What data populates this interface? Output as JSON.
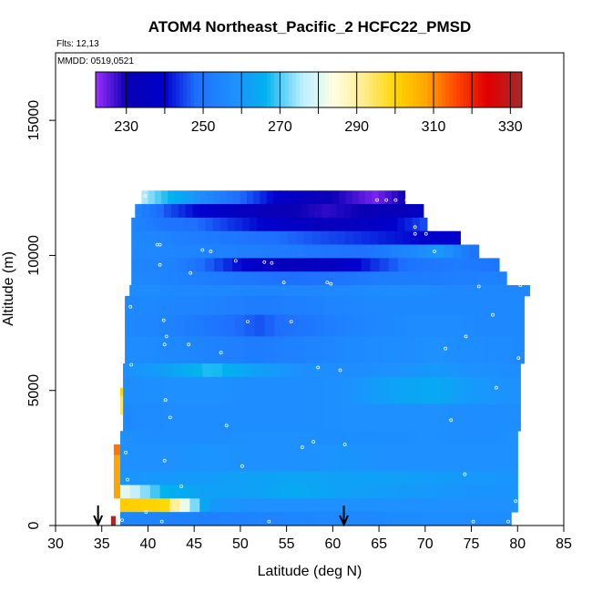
{
  "chart_data": {
    "type": "heatmap",
    "title": "ATOM4 Northeast_Pacific_2 HCFC22_PMSD",
    "flights_label": "Flts: 12,13",
    "mmdd_label": "MMDD: 0519,0521",
    "xlabel": "Latitude (deg N)",
    "ylabel": "Altitude (m)",
    "xlim": [
      30,
      85
    ],
    "ylim": [
      0,
      17500
    ],
    "x_ticks": [
      30,
      35,
      40,
      45,
      50,
      55,
      60,
      65,
      70,
      75,
      80,
      85
    ],
    "y_ticks": [
      0,
      5000,
      10000,
      15000
    ],
    "colorbar": {
      "range": [
        222,
        333
      ],
      "tick_values": [
        230,
        250,
        270,
        290,
        310,
        330
      ],
      "segment_breaks": [
        230,
        240,
        250,
        260,
        270,
        280,
        290,
        300,
        310,
        320,
        330
      ],
      "color_stops": [
        {
          "v": 222,
          "c": "#9b30ff"
        },
        {
          "v": 230,
          "c": "#0a00b4"
        },
        {
          "v": 240,
          "c": "#0000cd"
        },
        {
          "v": 248,
          "c": "#1e6fff"
        },
        {
          "v": 258,
          "c": "#1e90ff"
        },
        {
          "v": 266,
          "c": "#00b2ee"
        },
        {
          "v": 276,
          "c": "#bfefff"
        },
        {
          "v": 284,
          "c": "#ffffe0"
        },
        {
          "v": 292,
          "c": "#ffec8b"
        },
        {
          "v": 300,
          "c": "#ffd700"
        },
        {
          "v": 308,
          "c": "#ffa500"
        },
        {
          "v": 316,
          "c": "#ff4500"
        },
        {
          "v": 324,
          "c": "#e00000"
        },
        {
          "v": 333,
          "c": "#a52a2a"
        }
      ]
    },
    "layers": [
      {
        "alt_min": 11900,
        "alt_max": 12400,
        "lat_min": 39.3,
        "lat_max": 67.8,
        "vals": [
          276,
          266,
          258,
          250,
          244,
          236,
          232,
          228,
          224,
          230
        ]
      },
      {
        "alt_min": 11400,
        "alt_max": 11900,
        "lat_min": 38.6,
        "lat_max": 69.8,
        "vals": [
          255,
          246,
          240,
          236,
          232,
          230,
          228,
          230,
          232,
          236
        ]
      },
      {
        "alt_min": 10900,
        "alt_max": 11400,
        "lat_min": 38.2,
        "lat_max": 70.2,
        "vals": [
          255,
          250,
          248,
          244,
          240,
          236,
          233,
          235,
          240,
          246
        ]
      },
      {
        "alt_min": 10400,
        "alt_max": 10900,
        "lat_min": 38.2,
        "lat_max": 73.8,
        "vals": [
          256,
          254,
          252,
          250,
          248,
          246,
          244,
          242,
          240,
          238
        ]
      },
      {
        "alt_min": 9900,
        "alt_max": 10400,
        "lat_min": 38.2,
        "lat_max": 75.8,
        "vals": [
          256,
          255,
          254,
          253,
          252,
          250,
          249,
          254,
          260,
          248
        ]
      },
      {
        "alt_min": 9400,
        "alt_max": 9900,
        "lat_min": 38.2,
        "lat_max": 78.0,
        "vals": [
          255,
          254,
          246,
          238,
          232,
          236,
          244,
          250,
          252,
          250
        ]
      },
      {
        "alt_min": 8900,
        "alt_max": 9400,
        "lat_min": 38.2,
        "lat_max": 78.8,
        "vals": [
          256,
          254,
          252,
          250,
          248,
          250,
          252,
          252,
          253,
          254
        ]
      },
      {
        "alt_min": 8500,
        "alt_max": 8900,
        "lat_min": 38.0,
        "lat_max": 81.3,
        "vals": [
          257,
          256,
          256,
          255,
          256,
          256,
          257,
          256,
          256,
          256
        ]
      },
      {
        "alt_min": 7800,
        "alt_max": 8500,
        "lat_min": 37.5,
        "lat_max": 80.7,
        "vals": [
          256,
          255,
          254,
          252,
          253,
          255,
          256,
          256,
          256,
          256
        ]
      },
      {
        "alt_min": 7000,
        "alt_max": 7800,
        "lat_min": 37.5,
        "lat_max": 80.7,
        "vals": [
          256,
          254,
          250,
          246,
          250,
          254,
          256,
          257,
          256,
          256
        ]
      },
      {
        "alt_min": 6000,
        "alt_max": 7000,
        "lat_min": 37.5,
        "lat_max": 80.7,
        "vals": [
          257,
          256,
          254,
          252,
          254,
          256,
          257,
          258,
          257,
          256
        ]
      },
      {
        "alt_min": 5500,
        "alt_max": 6000,
        "lat_min": 37.3,
        "lat_max": 80.3,
        "vals": [
          258,
          262,
          268,
          262,
          258,
          257,
          258,
          260,
          258,
          257
        ]
      },
      {
        "alt_min": 4500,
        "alt_max": 5500,
        "lat_min": 37.3,
        "lat_max": 80.3,
        "vals": [
          257,
          258,
          258,
          257,
          257,
          258,
          262,
          264,
          260,
          258
        ]
      },
      {
        "alt_min": 3500,
        "alt_max": 4500,
        "lat_min": 37.3,
        "lat_max": 80.3,
        "vals": [
          256,
          257,
          257,
          257,
          257,
          258,
          258,
          258,
          257,
          257
        ]
      },
      {
        "alt_min": 3000,
        "alt_max": 3500,
        "lat_min": 37.0,
        "lat_max": 80.0,
        "vals": [
          258,
          257,
          257,
          258,
          258,
          257,
          257,
          258,
          257,
          258
        ]
      },
      {
        "alt_min": 2000,
        "alt_max": 3000,
        "lat_min": 37.0,
        "lat_max": 80.0,
        "vals": [
          258,
          258,
          259,
          258,
          258,
          259,
          258,
          258,
          258,
          258
        ]
      },
      {
        "alt_min": 1500,
        "alt_max": 2000,
        "lat_min": 37.0,
        "lat_max": 80.0,
        "vals": [
          259,
          260,
          261,
          262,
          263,
          262,
          262,
          261,
          260,
          259
        ]
      },
      {
        "alt_min": 1000,
        "alt_max": 1500,
        "lat_min": 37.0,
        "lat_max": 80.0,
        "vals": [
          282,
          266,
          262,
          262,
          264,
          262,
          261,
          260,
          259,
          259
        ]
      },
      {
        "alt_min": 500,
        "alt_max": 1000,
        "lat_min": 37.0,
        "lat_max": 80.0,
        "vals": [
          302,
          300,
          260,
          258,
          258,
          258,
          258,
          258,
          258,
          258
        ]
      },
      {
        "alt_min": 0,
        "alt_max": 500,
        "lat_min": 37.0,
        "lat_max": 79.3,
        "vals": [
          256,
          254,
          253,
          254,
          255,
          256,
          256,
          257,
          257,
          257
        ]
      }
    ],
    "edge_strips": [
      {
        "alt_min": 2600,
        "alt_max": 3000,
        "lat_min": 36.3,
        "lat_max": 37.0,
        "v": 312
      },
      {
        "alt_min": 1000,
        "alt_max": 2600,
        "lat_min": 36.3,
        "lat_max": 37.0,
        "v": 308
      },
      {
        "alt_min": 0,
        "alt_max": 350,
        "lat_min": 36.0,
        "lat_max": 36.5,
        "v": 332
      },
      {
        "alt_min": 4100,
        "alt_max": 4800,
        "lat_min": 37.0,
        "lat_max": 37.3,
        "v": 294
      },
      {
        "alt_min": 4800,
        "alt_max": 5100,
        "lat_min": 37.0,
        "lat_max": 37.3,
        "v": 300
      }
    ],
    "points": [
      [
        39.7,
        12200
      ],
      [
        64.8,
        12050
      ],
      [
        65.8,
        12050
      ],
      [
        66.8,
        12050
      ],
      [
        68.0,
        12050
      ],
      [
        37.9,
        10950
      ],
      [
        68.9,
        11050
      ],
      [
        68.9,
        10800
      ],
      [
        70.1,
        10800
      ],
      [
        41.0,
        10400
      ],
      [
        41.3,
        10400
      ],
      [
        45.9,
        10200
      ],
      [
        46.8,
        10150
      ],
      [
        71.0,
        10150
      ],
      [
        49.5,
        9800
      ],
      [
        52.6,
        9750
      ],
      [
        53.4,
        9720
      ],
      [
        41.3,
        9650
      ],
      [
        44.6,
        9350
      ],
      [
        54.7,
        9000
      ],
      [
        59.4,
        9000
      ],
      [
        59.8,
        8950
      ],
      [
        75.8,
        8850
      ],
      [
        80.3,
        8900
      ],
      [
        38.1,
        8100
      ],
      [
        77.3,
        7800
      ],
      [
        41.7,
        7600
      ],
      [
        50.8,
        7550
      ],
      [
        55.5,
        7550
      ],
      [
        42.0,
        7000
      ],
      [
        74.4,
        7000
      ],
      [
        41.8,
        6700
      ],
      [
        44.4,
        6700
      ],
      [
        72.2,
        6550
      ],
      [
        47.9,
        6400
      ],
      [
        80.1,
        6200
      ],
      [
        38.2,
        5950
      ],
      [
        58.4,
        5850
      ],
      [
        60.8,
        5750
      ],
      [
        77.7,
        5100
      ],
      [
        41.9,
        4650
      ],
      [
        42.4,
        4000
      ],
      [
        72.8,
        3900
      ],
      [
        48.5,
        3700
      ],
      [
        57.9,
        3100
      ],
      [
        61.3,
        3000
      ],
      [
        56.7,
        2900
      ],
      [
        37.6,
        2700
      ],
      [
        41.8,
        2400
      ],
      [
        50.2,
        2200
      ],
      [
        74.3,
        1900
      ],
      [
        37.8,
        1700
      ],
      [
        43.6,
        1450
      ],
      [
        79.8,
        900
      ],
      [
        37.2,
        200
      ],
      [
        41.5,
        150
      ],
      [
        53.1,
        150
      ],
      [
        75.2,
        150
      ],
      [
        79.0,
        150
      ],
      [
        39.8,
        500
      ]
    ],
    "arrows_lat": [
      34.6,
      61.2
    ]
  }
}
